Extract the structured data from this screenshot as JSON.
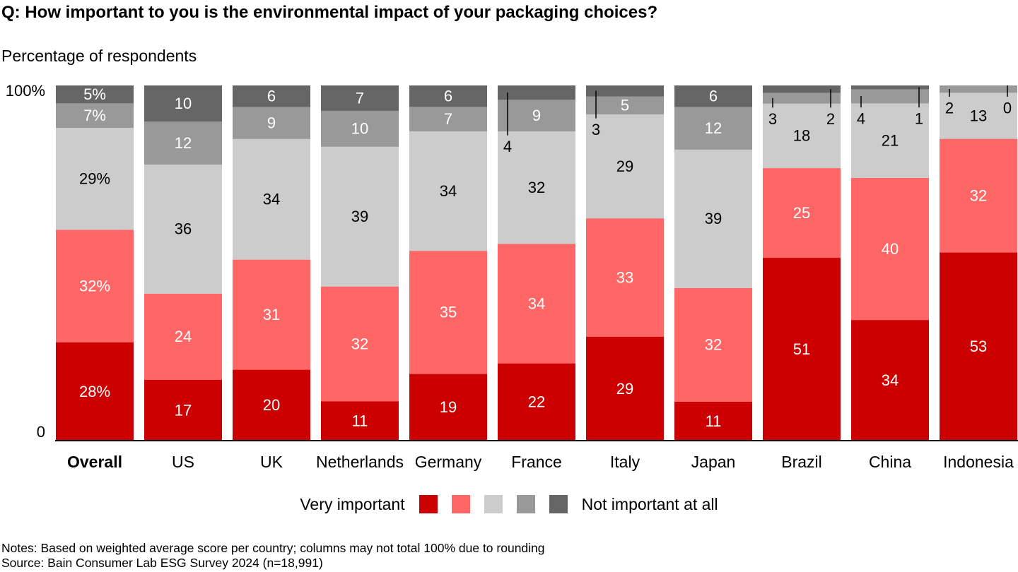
{
  "title": "Q: How important to you is the environmental impact of your packaging choices?",
  "notes": [
    "Notes: Based on weighted average score per country; columns may not total 100% due to rounding",
    "Source: Bain Consumer Lab ESG Survey 2024 (n=18,991)"
  ],
  "legend": {
    "left_label": "Very important",
    "right_label": "Not important at all"
  },
  "chart_data": {
    "type": "bar",
    "stacked": true,
    "ylabel": "Percentage of respondents",
    "yticks": [
      "100%",
      "0"
    ],
    "ylim": [
      0,
      100
    ],
    "categories": [
      "Overall",
      "US",
      "UK",
      "Netherlands",
      "Germany",
      "France",
      "Italy",
      "Japan",
      "Brazil",
      "China",
      "Indonesia"
    ],
    "bold_categories": [
      "Overall"
    ],
    "colors": [
      "#cc0000",
      "#ff6666",
      "#cccccc",
      "#999999",
      "#666666"
    ],
    "series": [
      {
        "values": [
          28,
          17,
          20,
          11,
          19,
          22,
          29,
          11,
          51,
          34,
          53
        ],
        "labels": [
          "28%",
          "17",
          "20",
          "11",
          "19",
          "22",
          "29",
          "11",
          "51",
          "34",
          "53"
        ]
      },
      {
        "values": [
          32,
          24,
          31,
          32,
          35,
          34,
          33,
          32,
          25,
          40,
          32
        ],
        "labels": [
          "32%",
          "24",
          "31",
          "32",
          "35",
          "34",
          "33",
          "32",
          "25",
          "40",
          "32"
        ]
      },
      {
        "values": [
          29,
          36,
          34,
          39,
          34,
          32,
          29,
          39,
          18,
          21,
          13
        ],
        "labels": [
          "29%",
          "36",
          "34",
          "39",
          "34",
          "32",
          "29",
          "39",
          "18",
          "21",
          "13"
        ]
      },
      {
        "values": [
          7,
          12,
          9,
          10,
          7,
          9,
          5,
          12,
          3,
          4,
          2
        ],
        "labels": [
          "7%",
          "12",
          "9",
          "10",
          "7",
          "9",
          "5",
          "12",
          "3",
          "4",
          "2"
        ]
      },
      {
        "values": [
          5,
          10,
          6,
          7,
          6,
          4,
          3,
          6,
          2,
          1,
          0
        ],
        "labels": [
          "5%",
          "10",
          "6",
          "7",
          "6",
          "4",
          "3",
          "6",
          "2",
          "1",
          "0"
        ]
      }
    ]
  }
}
